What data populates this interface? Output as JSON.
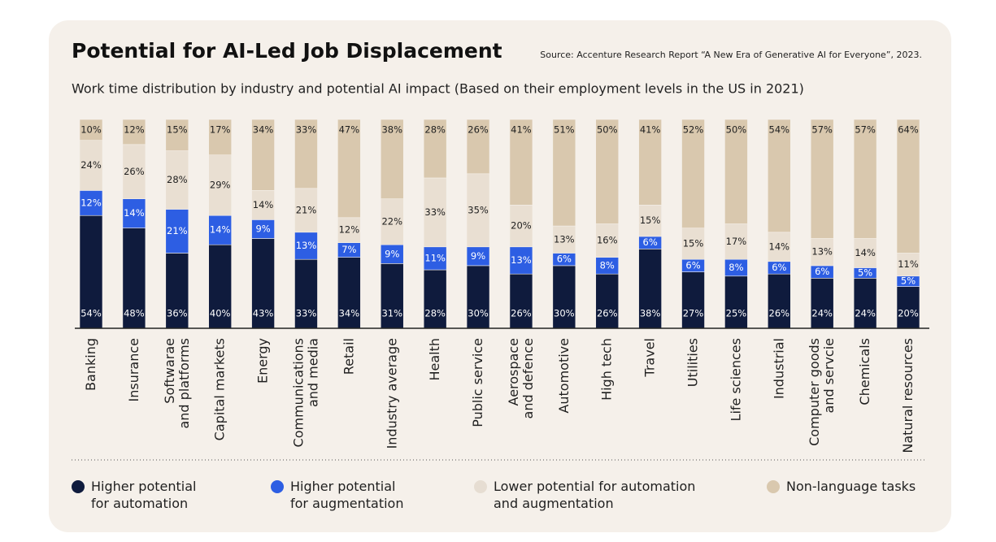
{
  "chart_data": {
    "type": "stacked-bar",
    "title": "Potential for AI-Led Job Displacement",
    "source": "Source: Accenture Research Report “A New Era of Generative AI for Everyone”, 2023.",
    "subtitle": "Work time distribution by industry and potential AI impact (Based on their employment levels in the US in 2021)",
    "categories": [
      "Banking",
      "Insurance",
      "Softwarae and platforms",
      "Capital markets",
      "Energy",
      "Communications and media",
      "Retail",
      "Industry average",
      "Health",
      "Public service",
      "Aerospace and defence",
      "Automotive",
      "High tech",
      "Travel",
      "Utilities",
      "Life sciences",
      "Industrial",
      "Computer goods and servcie",
      "Chemicals",
      "Natural resources"
    ],
    "series": [
      {
        "name": "Higher potential for automation",
        "color": "#0f1b3d",
        "label_color": "#ffffff",
        "values": [
          54,
          48,
          36,
          40,
          43,
          33,
          34,
          31,
          28,
          30,
          26,
          30,
          26,
          38,
          27,
          25,
          26,
          24,
          24,
          20
        ],
        "value_labels": [
          "54%",
          "48%",
          "36%",
          "40%",
          "43%",
          "33%",
          "34%",
          "31%",
          "28%",
          "30%",
          "26%",
          "30%",
          "26%",
          "38%",
          "27%",
          "25%",
          "26%",
          "24%",
          "24%",
          "20%"
        ]
      },
      {
        "name": "Higher potential for augmentation",
        "color": "#2d5ee3",
        "label_color": "#ffffff",
        "values": [
          12,
          14,
          21,
          14,
          9,
          13,
          7,
          9,
          11,
          9,
          13,
          6,
          8,
          6,
          6,
          8,
          6,
          6,
          5,
          5
        ],
        "value_labels": [
          "12%",
          "14%",
          "21%",
          "14%",
          "9%",
          "13%",
          "7%",
          "9%",
          "11%",
          "9%",
          "13%",
          "6%",
          "8%",
          "6%",
          "6%",
          "8%",
          "6%",
          "6%",
          "5%",
          "5%"
        ]
      },
      {
        "name": "Lower potential for automation and augmentation",
        "color": "#e9dfd2",
        "label_color": "#1f1f1f",
        "values": [
          24,
          26,
          28,
          29,
          14,
          21,
          12,
          22,
          33,
          35,
          20,
          13,
          16,
          15,
          15,
          17,
          14,
          13,
          14,
          11
        ],
        "value_labels": [
          "24%",
          "26%",
          "28%",
          "29%",
          "14%",
          "21%",
          "12%",
          "22%",
          "33%",
          "35%",
          "20%",
          "13%",
          "16%",
          "15%",
          "15%",
          "17%",
          "14%",
          "13%",
          "14%",
          "11%"
        ]
      },
      {
        "name": "Non-language tasks",
        "color": "#d9c8ae",
        "label_color": "#1f1f1f",
        "values": [
          10,
          12,
          15,
          17,
          34,
          33,
          47,
          38,
          28,
          26,
          41,
          51,
          50,
          41,
          52,
          50,
          54,
          57,
          57,
          64
        ],
        "value_labels": [
          "10%",
          "12%",
          "15%",
          "17%",
          "34%",
          "33%",
          "47%",
          "38%",
          "28%",
          "26%",
          "41%",
          "51%",
          "50%",
          "41%",
          "52%",
          "50%",
          "54%",
          "57%",
          "57%",
          "64%"
        ]
      }
    ]
  }
}
